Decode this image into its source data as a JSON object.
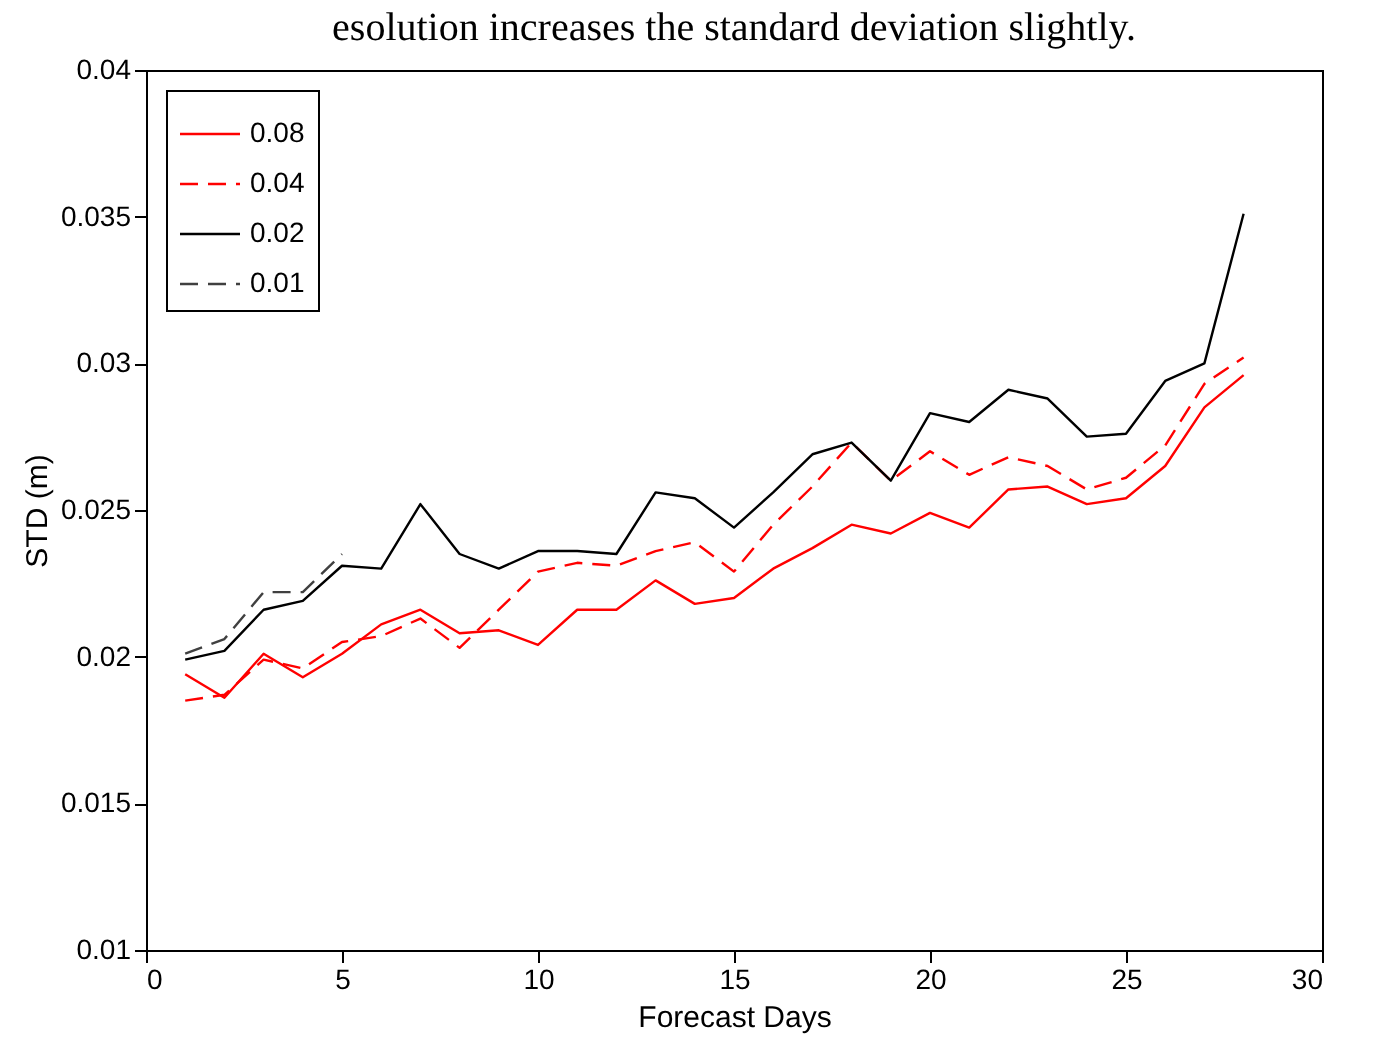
{
  "chart_data": {
    "type": "line",
    "xlabel": "Forecast Days",
    "ylabel": "STD (m)",
    "annotations": [
      "esolution increases the standard deviation slightly."
    ],
    "x": [
      1,
      2,
      3,
      4,
      5,
      6,
      7,
      8,
      9,
      10,
      11,
      12,
      13,
      14,
      15,
      16,
      17,
      18,
      19,
      20,
      21,
      22,
      23,
      24,
      25,
      26,
      27,
      28
    ],
    "series": [
      {
        "name": "0.08",
        "color": "#ff0000",
        "line_style": "solid",
        "values": [
          0.0194,
          0.0186,
          0.0201,
          0.0193,
          0.0201,
          0.0211,
          0.0216,
          0.0208,
          0.0209,
          0.0204,
          0.0216,
          0.0216,
          0.0226,
          0.0218,
          0.022,
          0.023,
          0.0237,
          0.0245,
          0.0242,
          0.0249,
          0.0244,
          0.0257,
          0.0258,
          0.0252,
          0.0254,
          0.0265,
          0.0285,
          0.0296
        ]
      },
      {
        "name": "0.04",
        "color": "#ff0000",
        "line_style": "dashed",
        "values": [
          0.0185,
          0.0187,
          0.0199,
          0.0196,
          0.0205,
          0.0207,
          0.0213,
          0.0203,
          0.0216,
          0.0229,
          0.0232,
          0.0231,
          0.0236,
          0.0239,
          0.0229,
          0.0245,
          0.0258,
          0.0273,
          0.026,
          0.027,
          0.0262,
          0.0268,
          0.0265,
          0.0257,
          0.0261,
          0.0272,
          0.0293,
          0.0302
        ]
      },
      {
        "name": "0.02",
        "color": "#000000",
        "line_style": "solid",
        "values": [
          0.0199,
          0.0202,
          0.0216,
          0.0219,
          0.0231,
          0.023,
          0.0252,
          0.0235,
          0.023,
          0.0236,
          0.0236,
          0.0235,
          0.0256,
          0.0254,
          0.0244,
          0.0256,
          0.0269,
          0.0273,
          0.026,
          0.0283,
          0.028,
          0.0291,
          0.0288,
          0.0275,
          0.0276,
          0.0294,
          0.03,
          0.0351
        ]
      },
      {
        "name": "0.01",
        "color": "#404040",
        "line_style": "dashed",
        "x": [
          1,
          2,
          3,
          4,
          5
        ],
        "values": [
          0.0201,
          0.0206,
          0.0222,
          0.0222,
          0.0235
        ]
      }
    ],
    "xlim": [
      0,
      30
    ],
    "xticks": [
      0,
      5,
      10,
      15,
      20,
      25,
      30
    ],
    "ylim": [
      0.01,
      0.04
    ],
    "yticks": [
      0.01,
      0.015,
      0.02,
      0.025,
      0.03,
      0.035,
      0.04
    ],
    "grid": false,
    "legend": "top left",
    "marker": "none"
  }
}
